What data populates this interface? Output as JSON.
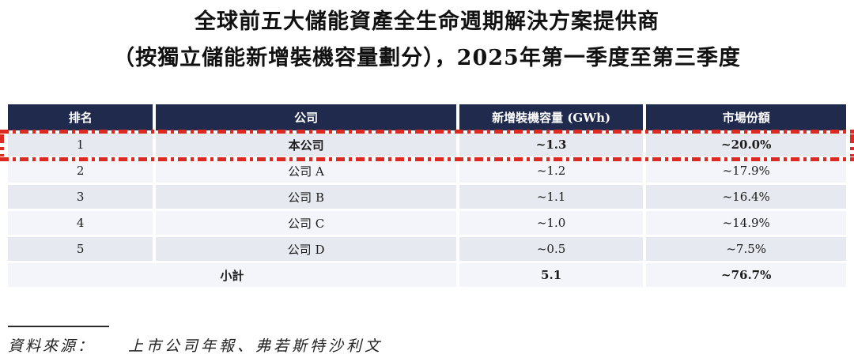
{
  "title": {
    "line1": "全球前五大儲能資產全生命週期解決方案提供商",
    "line2": "（按獨立儲能新增裝機容量劃分），2025年第一季度至第三季度"
  },
  "table": {
    "headers": {
      "rank": "排名",
      "company": "公司",
      "capacity": "新增裝機容量 (GWh)",
      "share": "市場份額"
    },
    "rows": [
      {
        "rank": "1",
        "company": "本公司",
        "capacity": "~1.3",
        "share": "~20.0%",
        "highlighted": true
      },
      {
        "rank": "2",
        "company": "公司 A",
        "capacity": "~1.2",
        "share": "~17.9%",
        "highlighted": false
      },
      {
        "rank": "3",
        "company": "公司 B",
        "capacity": "~1.1",
        "share": "~16.4%",
        "highlighted": false
      },
      {
        "rank": "4",
        "company": "公司 C",
        "capacity": "~1.0",
        "share": "~14.9%",
        "highlighted": false
      },
      {
        "rank": "5",
        "company": "公司 D",
        "capacity": "~0.5",
        "share": "~7.5%",
        "highlighted": false
      }
    ],
    "subtotal": {
      "label": "小計",
      "capacity": "5.1",
      "share": "~76.7%"
    }
  },
  "footer": {
    "label": "資料來源：",
    "text": "上市公司年報、弗若斯特沙利文"
  },
  "colors": {
    "header_bg": "#1f2a4d",
    "row_shade_dark": "#e7e9f0",
    "row_shade_light": "#f3f5fa",
    "highlight_red": "#dc2a22"
  }
}
